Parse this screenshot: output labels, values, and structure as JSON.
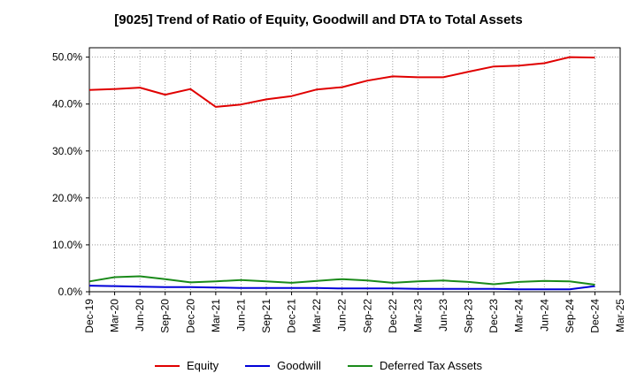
{
  "chart_data": {
    "type": "line",
    "title": "[9025]  Trend of Ratio of Equity, Goodwill and DTA to Total Assets",
    "xlabel": "",
    "ylabel": "",
    "ylim": [
      0,
      52
    ],
    "yticks": [
      0,
      10,
      20,
      30,
      40,
      50
    ],
    "ytick_labels": [
      "0.0%",
      "10.0%",
      "20.0%",
      "30.0%",
      "40.0%",
      "50.0%"
    ],
    "grid": true,
    "legend_position": "bottom",
    "x_labels": [
      "Dec-19",
      "Mar-20",
      "Jun-20",
      "Sep-20",
      "Dec-20",
      "Mar-21",
      "Jun-21",
      "Sep-21",
      "Dec-21",
      "Mar-22",
      "Jun-22",
      "Sep-22",
      "Dec-22",
      "Mar-23",
      "Jun-23",
      "Sep-23",
      "Dec-23",
      "Mar-24",
      "Jun-24",
      "Sep-24",
      "Dec-24",
      "Mar-25"
    ],
    "series": [
      {
        "name": "Equity",
        "color": "#e00000",
        "values": [
          43.0,
          43.2,
          43.5,
          42.0,
          43.2,
          39.4,
          39.9,
          41.0,
          41.7,
          43.1,
          43.6,
          45.0,
          45.9,
          45.7,
          45.7,
          46.9,
          48.0,
          48.2,
          48.7,
          50.0,
          49.9,
          null
        ]
      },
      {
        "name": "Goodwill",
        "color": "#0000d8",
        "values": [
          1.3,
          1.2,
          1.1,
          1.0,
          1.0,
          0.9,
          0.8,
          0.8,
          0.8,
          0.8,
          0.7,
          0.7,
          0.7,
          0.6,
          0.6,
          0.6,
          0.6,
          0.5,
          0.5,
          0.5,
          1.2,
          null
        ]
      },
      {
        "name": "Deferred Tax Assets",
        "color": "#1a8a1a",
        "values": [
          2.2,
          3.1,
          3.3,
          2.7,
          2.0,
          2.2,
          2.5,
          2.2,
          1.9,
          2.3,
          2.7,
          2.4,
          1.9,
          2.2,
          2.4,
          2.1,
          1.6,
          2.1,
          2.3,
          2.2,
          1.5,
          null
        ]
      }
    ]
  }
}
